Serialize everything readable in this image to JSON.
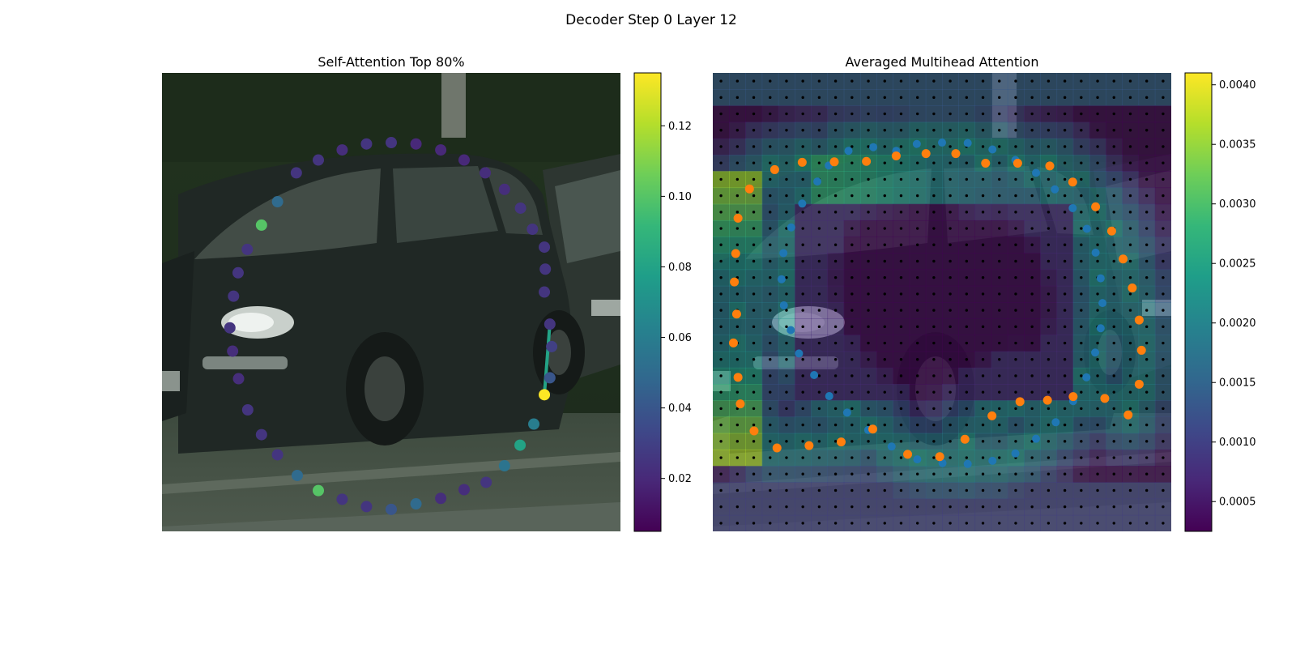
{
  "figure": {
    "title": "Decoder Step 0 Layer 12"
  },
  "colors": {
    "viridis": [
      "#440154",
      "#482878",
      "#3e4989",
      "#31688e",
      "#26828e",
      "#1f9e89",
      "#35b779",
      "#6ece58",
      "#b5de2b",
      "#fde725"
    ],
    "gt_points": "#1f77b4",
    "pred_points": "#ff7f0e",
    "grid_dots": "#000000"
  },
  "chart_data": [
    {
      "type": "scatter",
      "title": "Self-Attention Top 80%",
      "background": "photo of a dark hatchback car parked by a street",
      "colorbar": {
        "vmin": 0.005,
        "vmax": 0.135,
        "ticks": [
          "0.02",
          "0.04",
          "0.06",
          "0.08",
          "0.10",
          "0.12"
        ],
        "tick_values": [
          0.02,
          0.04,
          0.06,
          0.08,
          0.1,
          0.12
        ]
      },
      "image_extent": [
        0,
        1
      ],
      "points": [
        [
          0.5,
          0.152,
          0.025
        ],
        [
          0.554,
          0.155,
          0.02
        ],
        [
          0.608,
          0.168,
          0.02
        ],
        [
          0.659,
          0.19,
          0.02
        ],
        [
          0.705,
          0.218,
          0.022
        ],
        [
          0.747,
          0.254,
          0.022
        ],
        [
          0.782,
          0.295,
          0.025
        ],
        [
          0.808,
          0.341,
          0.025
        ],
        [
          0.834,
          0.38,
          0.025
        ],
        [
          0.836,
          0.428,
          0.025
        ],
        [
          0.834,
          0.478,
          0.025
        ],
        [
          0.846,
          0.548,
          0.025
        ],
        [
          0.85,
          0.597,
          0.03
        ],
        [
          0.846,
          0.665,
          0.04
        ],
        [
          0.834,
          0.702,
          0.135
        ],
        [
          0.811,
          0.766,
          0.06
        ],
        [
          0.781,
          0.812,
          0.08
        ],
        [
          0.747,
          0.857,
          0.055
        ],
        [
          0.707,
          0.893,
          0.025
        ],
        [
          0.659,
          0.909,
          0.022
        ],
        [
          0.608,
          0.928,
          0.022
        ],
        [
          0.554,
          0.94,
          0.05
        ],
        [
          0.5,
          0.952,
          0.04
        ],
        [
          0.446,
          0.946,
          0.025
        ],
        [
          0.393,
          0.93,
          0.025
        ],
        [
          0.341,
          0.911,
          0.1
        ],
        [
          0.295,
          0.878,
          0.05
        ],
        [
          0.252,
          0.833,
          0.025
        ],
        [
          0.217,
          0.789,
          0.025
        ],
        [
          0.187,
          0.735,
          0.025
        ],
        [
          0.167,
          0.667,
          0.022
        ],
        [
          0.154,
          0.607,
          0.022
        ],
        [
          0.148,
          0.556,
          0.025
        ],
        [
          0.156,
          0.487,
          0.025
        ],
        [
          0.166,
          0.436,
          0.025
        ],
        [
          0.186,
          0.385,
          0.025
        ],
        [
          0.217,
          0.332,
          0.1
        ],
        [
          0.252,
          0.281,
          0.05
        ],
        [
          0.293,
          0.218,
          0.025
        ],
        [
          0.341,
          0.19,
          0.025
        ],
        [
          0.393,
          0.168,
          0.022
        ],
        [
          0.446,
          0.155,
          0.025
        ]
      ],
      "edges": [
        [
          11,
          14,
          0.08
        ]
      ]
    },
    {
      "type": "heatmap",
      "title": "Averaged Multihead Attention",
      "background": "same car photo under attention heatmap",
      "colorbar": {
        "vmin": 0.00025,
        "vmax": 0.0041,
        "ticks": [
          "0.0005",
          "0.0010",
          "0.0015",
          "0.0020",
          "0.0025",
          "0.0030",
          "0.0035",
          "0.0040"
        ],
        "tick_values": [
          0.0005,
          0.001,
          0.0015,
          0.002,
          0.0025,
          0.003,
          0.0035,
          0.004
        ]
      },
      "grid": {
        "rows": 28,
        "cols": 28
      },
      "gt_points": [
        [
          0.4,
          0.17
        ],
        [
          0.445,
          0.155
        ],
        [
          0.5,
          0.152
        ],
        [
          0.556,
          0.153
        ],
        [
          0.61,
          0.167
        ],
        [
          0.66,
          0.19
        ],
        [
          0.705,
          0.218
        ],
        [
          0.746,
          0.254
        ],
        [
          0.785,
          0.295
        ],
        [
          0.816,
          0.34
        ],
        [
          0.835,
          0.392
        ],
        [
          0.846,
          0.448
        ],
        [
          0.85,
          0.502
        ],
        [
          0.846,
          0.557
        ],
        [
          0.834,
          0.61
        ],
        [
          0.815,
          0.664
        ],
        [
          0.786,
          0.716
        ],
        [
          0.748,
          0.762
        ],
        [
          0.705,
          0.798
        ],
        [
          0.66,
          0.83
        ],
        [
          0.61,
          0.846
        ],
        [
          0.556,
          0.853
        ],
        [
          0.501,
          0.851
        ],
        [
          0.446,
          0.843
        ],
        [
          0.39,
          0.815
        ],
        [
          0.339,
          0.779
        ],
        [
          0.293,
          0.741
        ],
        [
          0.254,
          0.705
        ],
        [
          0.221,
          0.659
        ],
        [
          0.188,
          0.612
        ],
        [
          0.17,
          0.561
        ],
        [
          0.155,
          0.507
        ],
        [
          0.15,
          0.45
        ],
        [
          0.154,
          0.393
        ],
        [
          0.171,
          0.337
        ],
        [
          0.195,
          0.285
        ],
        [
          0.228,
          0.237
        ],
        [
          0.253,
          0.202
        ],
        [
          0.296,
          0.17
        ],
        [
          0.35,
          0.162
        ]
      ],
      "pred_points": [
        [
          0.135,
          0.211
        ],
        [
          0.195,
          0.195
        ],
        [
          0.265,
          0.194
        ],
        [
          0.335,
          0.193
        ],
        [
          0.4,
          0.181
        ],
        [
          0.465,
          0.176
        ],
        [
          0.53,
          0.176
        ],
        [
          0.595,
          0.197
        ],
        [
          0.665,
          0.197
        ],
        [
          0.735,
          0.203
        ],
        [
          0.785,
          0.238
        ],
        [
          0.835,
          0.292
        ],
        [
          0.87,
          0.345
        ],
        [
          0.895,
          0.406
        ],
        [
          0.915,
          0.469
        ],
        [
          0.93,
          0.539
        ],
        [
          0.935,
          0.605
        ],
        [
          0.93,
          0.679
        ],
        [
          0.906,
          0.746
        ],
        [
          0.855,
          0.71
        ],
        [
          0.786,
          0.706
        ],
        [
          0.73,
          0.714
        ],
        [
          0.67,
          0.717
        ],
        [
          0.609,
          0.748
        ],
        [
          0.55,
          0.799
        ],
        [
          0.495,
          0.837
        ],
        [
          0.425,
          0.832
        ],
        [
          0.349,
          0.777
        ],
        [
          0.28,
          0.805
        ],
        [
          0.21,
          0.813
        ],
        [
          0.14,
          0.818
        ],
        [
          0.09,
          0.781
        ],
        [
          0.06,
          0.722
        ],
        [
          0.055,
          0.664
        ],
        [
          0.045,
          0.589
        ],
        [
          0.052,
          0.526
        ],
        [
          0.047,
          0.456
        ],
        [
          0.05,
          0.394
        ],
        [
          0.055,
          0.317
        ],
        [
          0.08,
          0.253
        ]
      ]
    }
  ]
}
